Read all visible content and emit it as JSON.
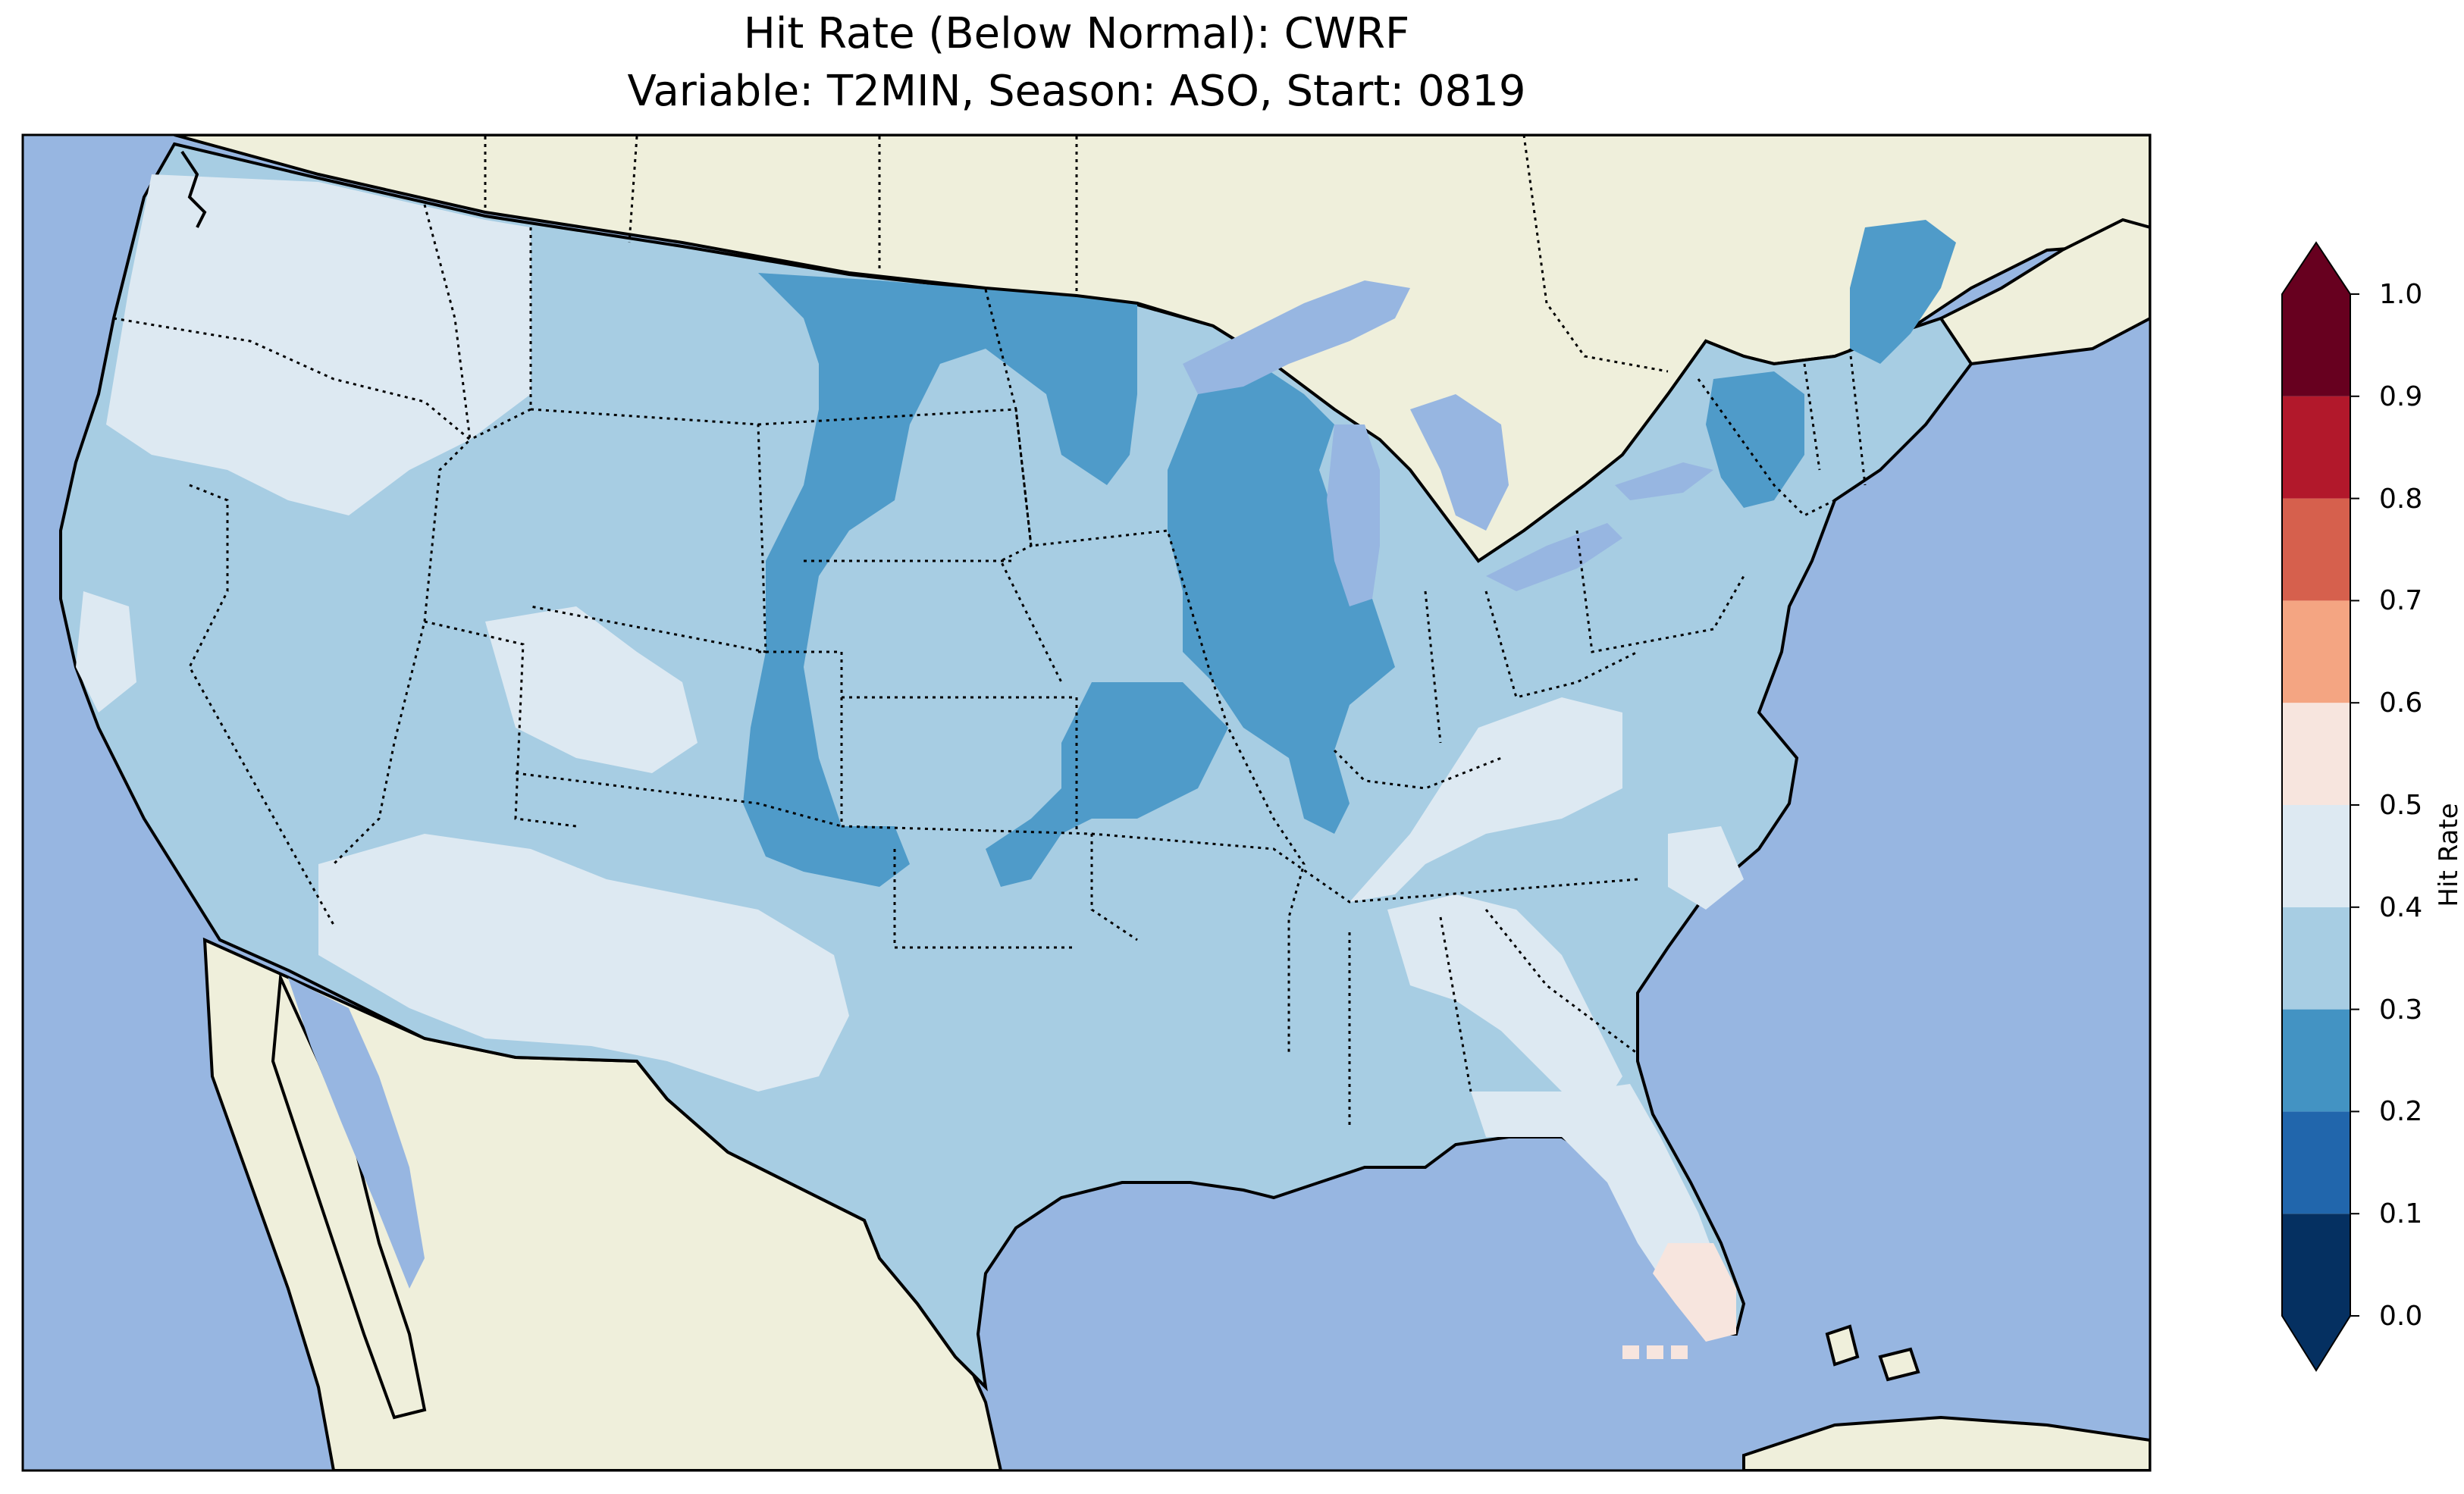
{
  "title": {
    "line1": "Hit Rate (Below Normal): CWRF",
    "line2": "Variable: T2MIN, Season: ASO, Start: 0819"
  },
  "colorbar": {
    "label": "Hit Rate",
    "ticks": [
      "0.0",
      "0.1",
      "0.2",
      "0.3",
      "0.4",
      "0.5",
      "0.6",
      "0.7",
      "0.8",
      "0.9",
      "1.0"
    ],
    "bins": [
      {
        "range": [
          0.0,
          0.1
        ],
        "color": "#053061"
      },
      {
        "range": [
          0.1,
          0.2
        ],
        "color": "#2166ac"
      },
      {
        "range": [
          0.2,
          0.3
        ],
        "color": "#4393c3"
      },
      {
        "range": [
          0.3,
          0.4
        ],
        "color": "#a7cde3"
      },
      {
        "range": [
          0.4,
          0.5
        ],
        "color": "#dde9f2"
      },
      {
        "range": [
          0.5,
          0.6
        ],
        "color": "#f7e5de"
      },
      {
        "range": [
          0.6,
          0.7
        ],
        "color": "#f4a582"
      },
      {
        "range": [
          0.7,
          0.8
        ],
        "color": "#d6604d"
      },
      {
        "range": [
          0.8,
          0.9
        ],
        "color": "#b2182b"
      },
      {
        "range": [
          0.9,
          1.0
        ],
        "color": "#67001f"
      }
    ],
    "extend": "both"
  },
  "map": {
    "projection": "Lambert Conformal",
    "region": "Contiguous United States",
    "ocean_color": "#97b6e1",
    "land_color": "#efefdb",
    "dominant_value_range": [
      0.3,
      0.4
    ],
    "highlights": [
      {
        "area": "northern Great Plains (Dakotas, Nebraska)",
        "range": [
          0.2,
          0.3
        ]
      },
      {
        "area": "eastern Colorado / western Kansas",
        "range": [
          0.2,
          0.3
        ]
      },
      {
        "area": "Wisconsin / Iowa / Illinois",
        "range": [
          0.2,
          0.3
        ]
      },
      {
        "area": "northern New York / Maine",
        "range": [
          0.2,
          0.3
        ]
      },
      {
        "area": "Pacific Northwest / Great Basin / Southwest",
        "range": [
          0.4,
          0.5
        ]
      },
      {
        "area": "Gulf Coast / Georgia / northern Florida",
        "range": [
          0.4,
          0.5
        ]
      },
      {
        "area": "southern Florida",
        "range": [
          0.5,
          0.6
        ]
      }
    ]
  }
}
